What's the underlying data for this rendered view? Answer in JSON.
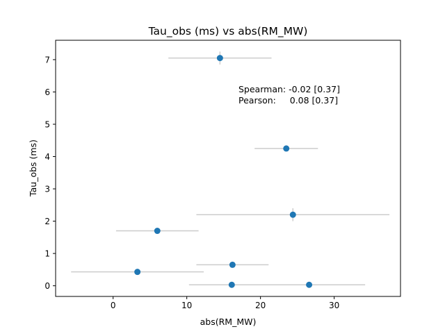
{
  "chart_data": {
    "type": "scatter",
    "title": "Tau_obs (ms) vs abs(RM_MW)",
    "xlabel": "abs(RM_MW)",
    "ylabel": "Tau_obs (ms)",
    "xlim": [
      -7.8,
      39.0
    ],
    "ylim": [
      -0.33,
      7.6
    ],
    "xticks": [
      0,
      10,
      20,
      30
    ],
    "yticks": [
      0,
      1,
      2,
      3,
      4,
      5,
      6,
      7
    ],
    "xtick_labels": [
      "0",
      "10",
      "20",
      "30"
    ],
    "ytick_labels": [
      "0",
      "1",
      "2",
      "3",
      "4",
      "5",
      "6",
      "7"
    ],
    "grid": false,
    "legend": "none",
    "marker_color": "#1f77b4",
    "errorbar_color": "#cccccc",
    "annotations": [
      "Spearman: -0.02 [0.37]",
      "Pearson:     0.08 [0.37]"
    ],
    "points": [
      {
        "x": 14.5,
        "y": 7.05,
        "xerr": 7.0,
        "yerr": 0.2
      },
      {
        "x": 23.5,
        "y": 4.25,
        "xerr": 4.3,
        "yerr": 0.05
      },
      {
        "x": 24.4,
        "y": 2.2,
        "xerr": 13.1,
        "yerr": 0.2
      },
      {
        "x": 6.0,
        "y": 1.7,
        "xerr": 5.6,
        "yerr": 0.05
      },
      {
        "x": 16.2,
        "y": 0.65,
        "xerr": 4.9,
        "yerr": 0.05
      },
      {
        "x": 3.3,
        "y": 0.43,
        "xerr": 9.0,
        "yerr": 0.05
      },
      {
        "x": 16.1,
        "y": 0.03,
        "xerr": 5.8,
        "yerr": 0.05
      },
      {
        "x": 26.6,
        "y": 0.03,
        "xerr": 7.6,
        "yerr": 0.05
      }
    ]
  }
}
